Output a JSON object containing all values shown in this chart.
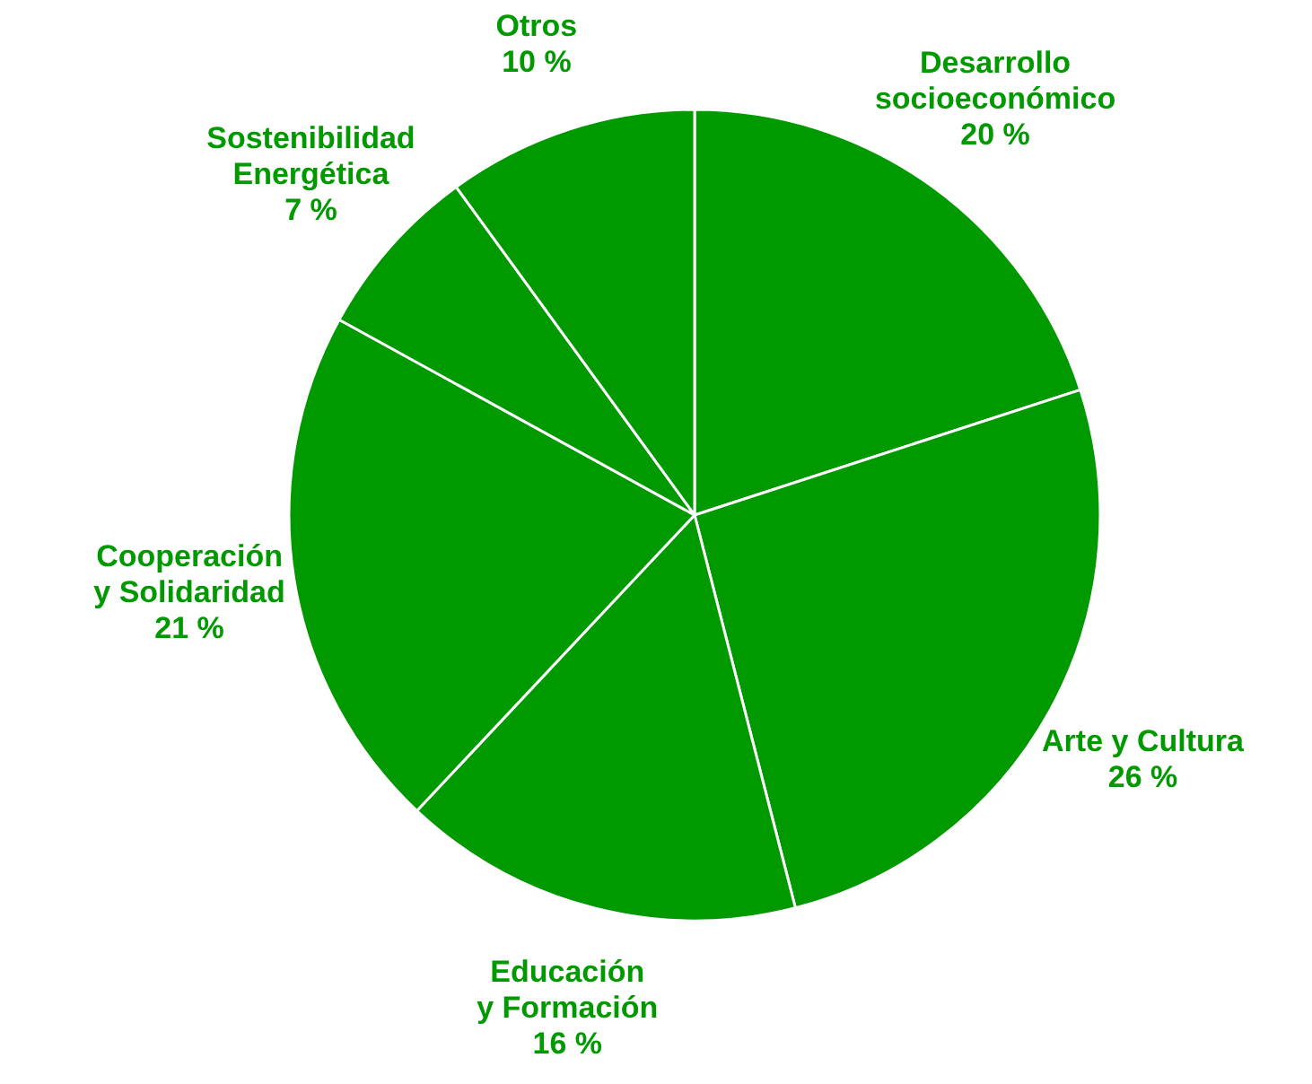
{
  "chart_data": {
    "type": "pie",
    "categories": [
      "Desarrollo\nsocioeconómico",
      "Arte y Cultura",
      "Educación\ny Formación",
      "Cooperación\ny Solidaridad",
      "Sostenibilidad\nEnergética",
      "Otros"
    ],
    "values": [
      20,
      26,
      16,
      21,
      7,
      10
    ],
    "value_labels": [
      "20 %",
      "26 %",
      "16 %",
      "21 %",
      "7 %",
      "10 %"
    ],
    "colors": [
      "#009900",
      "#009900",
      "#009900",
      "#009900",
      "#009900",
      "#009900"
    ]
  }
}
